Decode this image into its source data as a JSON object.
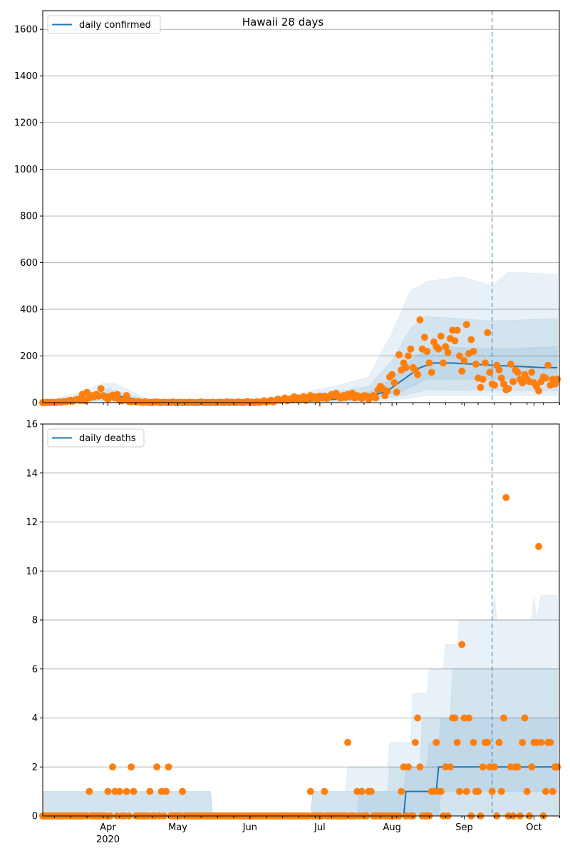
{
  "colors": {
    "model": "#1f77b4",
    "observed": "#ff7f0e",
    "grid": "#b0b0b0"
  },
  "chart_data": [
    {
      "type": "line",
      "title": "Hawaii 28 days",
      "legend": {
        "label": "daily confirmed",
        "placement": "top-left"
      },
      "start_date": "2020-03-04",
      "num_days": 222,
      "forecast_start_day": 193,
      "ylim": [
        0,
        1680
      ],
      "yticks": [
        0,
        200,
        400,
        600,
        800,
        1000,
        1200,
        1400,
        1600
      ],
      "grid": true,
      "observed": [
        0,
        0,
        1,
        0,
        2,
        0,
        1,
        3,
        2,
        5,
        4,
        8,
        10,
        6,
        12,
        15,
        9,
        35,
        8,
        44,
        20,
        30,
        25,
        35,
        28,
        60,
        30,
        22,
        15,
        25,
        32,
        20,
        35,
        10,
        8,
        12,
        30,
        5,
        4,
        6,
        3,
        5,
        2,
        1,
        4,
        2,
        0,
        1,
        2,
        3,
        1,
        0,
        2,
        1,
        0,
        1,
        3,
        0,
        1,
        2,
        0,
        1,
        0,
        2,
        1,
        0,
        0,
        1,
        3,
        1,
        0,
        1,
        0,
        2,
        0,
        1,
        2,
        1,
        0,
        4,
        0,
        2,
        1,
        0,
        3,
        1,
        0,
        2,
        5,
        1,
        2,
        0,
        4,
        1,
        3,
        8,
        2,
        5,
        10,
        3,
        8,
        15,
        10,
        12,
        20,
        8,
        15,
        18,
        25,
        12,
        20,
        15,
        25,
        10,
        22,
        30,
        18,
        25,
        15,
        28,
        20,
        28,
        18,
        25,
        35,
        30,
        40,
        25,
        20,
        30,
        22,
        35,
        25,
        40,
        20,
        30,
        25,
        18,
        30,
        28,
        15,
        25,
        30,
        20,
        55,
        70,
        60,
        30,
        50,
        110,
        120,
        85,
        45,
        205,
        140,
        170,
        150,
        200,
        230,
        150,
        140,
        120,
        355,
        230,
        280,
        220,
        170,
        130,
        260,
        240,
        230,
        285,
        170,
        240,
        215,
        275,
        310,
        265,
        310,
        200,
        135,
        180,
        335,
        210,
        270,
        220,
        165,
        105,
        65,
        100,
        170,
        300,
        130,
        80,
        75,
        160,
        140,
        105,
        80,
        55,
        60,
        165,
        90,
        140,
        130,
        100,
        85,
        120,
        100,
        90,
        130,
        85,
        70,
        50,
        90,
        110,
        105,
        160,
        75,
        100,
        80,
        100
      ],
      "median": [
        [
          0,
          2
        ],
        [
          15,
          15
        ],
        [
          28,
          35
        ],
        [
          40,
          15
        ],
        [
          50,
          3
        ],
        [
          110,
          3
        ],
        [
          125,
          15
        ],
        [
          140,
          25
        ],
        [
          148,
          50
        ],
        [
          155,
          100
        ],
        [
          162,
          150
        ],
        [
          168,
          170
        ],
        [
          175,
          170
        ],
        [
          185,
          165
        ],
        [
          193,
          160
        ],
        [
          205,
          155
        ],
        [
          215,
          150
        ],
        [
          221,
          150
        ]
      ],
      "bands": [
        {
          "lo": [
            [
              0,
              0
            ],
            [
              120,
              0
            ],
            [
              150,
              10
            ],
            [
              165,
              30
            ],
            [
              221,
              30
            ]
          ],
          "hi": [
            [
              0,
              5
            ],
            [
              15,
              40
            ],
            [
              25,
              80
            ],
            [
              30,
              85
            ],
            [
              38,
              50
            ],
            [
              45,
              15
            ],
            [
              55,
              8
            ],
            [
              100,
              10
            ],
            [
              110,
              40
            ],
            [
              125,
              70
            ],
            [
              140,
              110
            ],
            [
              150,
              300
            ],
            [
              158,
              480
            ],
            [
              165,
              520
            ],
            [
              180,
              540
            ],
            [
              193,
              500
            ],
            [
              200,
              560
            ],
            [
              221,
              550
            ]
          ]
        },
        {
          "lo": [
            [
              0,
              0
            ],
            [
              28,
              8
            ],
            [
              40,
              0
            ],
            [
              110,
              2
            ],
            [
              140,
              8
            ],
            [
              155,
              30
            ],
            [
              165,
              55
            ],
            [
              221,
              50
            ]
          ],
          "hi": [
            [
              0,
              3
            ],
            [
              15,
              25
            ],
            [
              28,
              60
            ],
            [
              40,
              25
            ],
            [
              50,
              5
            ],
            [
              100,
              8
            ],
            [
              115,
              30
            ],
            [
              140,
              70
            ],
            [
              150,
              180
            ],
            [
              158,
              320
            ],
            [
              165,
              370
            ],
            [
              193,
              350
            ],
            [
              221,
              360
            ]
          ]
        },
        {
          "lo": [
            [
              0,
              0
            ],
            [
              28,
              20
            ],
            [
              45,
              0
            ],
            [
              110,
              5
            ],
            [
              140,
              15
            ],
            [
              155,
              50
            ],
            [
              165,
              100
            ],
            [
              193,
              100
            ],
            [
              221,
              100
            ]
          ],
          "hi": [
            [
              0,
              2
            ],
            [
              28,
              40
            ],
            [
              45,
              3
            ],
            [
              100,
              5
            ],
            [
              120,
              20
            ],
            [
              140,
              45
            ],
            [
              150,
              100
            ],
            [
              160,
              200
            ],
            [
              170,
              240
            ],
            [
              193,
              230
            ],
            [
              221,
              240
            ]
          ]
        }
      ]
    },
    {
      "type": "line",
      "legend": {
        "label": "daily deaths",
        "placement": "top-left"
      },
      "start_date": "2020-03-04",
      "num_days": 222,
      "forecast_start_day": 193,
      "ylim": [
        0,
        16
      ],
      "yticks": [
        0,
        2,
        4,
        6,
        8,
        10,
        12,
        14,
        16
      ],
      "grid": true,
      "xticks": [
        {
          "day": 28,
          "label": "Apr",
          "sub": "2020"
        },
        {
          "day": 58,
          "label": "May"
        },
        {
          "day": 89,
          "label": "Jun"
        },
        {
          "day": 119,
          "label": "Jul"
        },
        {
          "day": 150,
          "label": "Aug"
        },
        {
          "day": 181,
          "label": "Sep"
        },
        {
          "day": 211,
          "label": "Oct"
        }
      ],
      "observed_default": 0,
      "observed_nonzero": [
        [
          20,
          1
        ],
        [
          28,
          1
        ],
        [
          30,
          2
        ],
        [
          31,
          1
        ],
        [
          33,
          1
        ],
        [
          36,
          1
        ],
        [
          38,
          2
        ],
        [
          39,
          1
        ],
        [
          46,
          1
        ],
        [
          49,
          2
        ],
        [
          51,
          1
        ],
        [
          53,
          1
        ],
        [
          54,
          2
        ],
        [
          60,
          1
        ],
        [
          115,
          1
        ],
        [
          121,
          1
        ],
        [
          131,
          3
        ],
        [
          135,
          1
        ],
        [
          137,
          1
        ],
        [
          140,
          1
        ],
        [
          141,
          1
        ],
        [
          154,
          1
        ],
        [
          155,
          2
        ],
        [
          157,
          2
        ],
        [
          160,
          3
        ],
        [
          161,
          4
        ],
        [
          162,
          2
        ],
        [
          167,
          1
        ],
        [
          168,
          1
        ],
        [
          169,
          3
        ],
        [
          170,
          1
        ],
        [
          171,
          1
        ],
        [
          173,
          2
        ],
        [
          175,
          2
        ],
        [
          176,
          4
        ],
        [
          177,
          4
        ],
        [
          178,
          3
        ],
        [
          179,
          1
        ],
        [
          180,
          7
        ],
        [
          181,
          4
        ],
        [
          182,
          1
        ],
        [
          183,
          4
        ],
        [
          185,
          3
        ],
        [
          186,
          1
        ],
        [
          187,
          1
        ],
        [
          189,
          2
        ],
        [
          190,
          3
        ],
        [
          191,
          3
        ],
        [
          192,
          2
        ],
        [
          193,
          1
        ],
        [
          194,
          2
        ],
        [
          196,
          3
        ],
        [
          197,
          1
        ],
        [
          198,
          4
        ],
        [
          199,
          13
        ],
        [
          201,
          2
        ],
        [
          203,
          2
        ],
        [
          204,
          2
        ],
        [
          206,
          3
        ],
        [
          207,
          4
        ],
        [
          208,
          1
        ],
        [
          210,
          2
        ],
        [
          211,
          3
        ],
        [
          212,
          3
        ],
        [
          213,
          11
        ],
        [
          214,
          3
        ],
        [
          216,
          1
        ],
        [
          217,
          3
        ],
        [
          218,
          3
        ],
        [
          219,
          1
        ],
        [
          220,
          2
        ],
        [
          221,
          2
        ]
      ],
      "median": [
        [
          0,
          0
        ],
        [
          155,
          0
        ],
        [
          156,
          1
        ],
        [
          169,
          1
        ],
        [
          170,
          2
        ],
        [
          221,
          2
        ]
      ],
      "bands": [
        {
          "lo": [
            [
              0,
              0
            ],
            [
              221,
              0
            ]
          ],
          "hi": [
            [
              0,
              1
            ],
            [
              72,
              1
            ],
            [
              73,
              0
            ],
            [
              115,
              0
            ],
            [
              116,
              1
            ],
            [
              130,
              1
            ],
            [
              131,
              2
            ],
            [
              148,
              2
            ],
            [
              149,
              3
            ],
            [
              158,
              3
            ],
            [
              159,
              5
            ],
            [
              165,
              5
            ],
            [
              166,
              6
            ],
            [
              172,
              6
            ],
            [
              173,
              7
            ],
            [
              178,
              7
            ],
            [
              179,
              8
            ],
            [
              193,
              8
            ],
            [
              194,
              9
            ],
            [
              195,
              8
            ],
            [
              210,
              8
            ],
            [
              211,
              9
            ],
            [
              212,
              8
            ],
            [
              214,
              9
            ],
            [
              221,
              9
            ]
          ]
        },
        {
          "lo": [
            [
              0,
              0
            ],
            [
              221,
              0
            ]
          ],
          "hi": [
            [
              0,
              1
            ],
            [
              72,
              1
            ],
            [
              73,
              0
            ],
            [
              115,
              0
            ],
            [
              116,
              1
            ],
            [
              148,
              1
            ],
            [
              149,
              2
            ],
            [
              162,
              2
            ],
            [
              163,
              4
            ],
            [
              175,
              4
            ],
            [
              176,
              6
            ],
            [
              221,
              6
            ]
          ]
        },
        {
          "lo": [
            [
              0,
              0
            ],
            [
              170,
              0
            ],
            [
              171,
              1
            ],
            [
              221,
              1
            ]
          ],
          "hi": [
            [
              0,
              0
            ],
            [
              135,
              0
            ],
            [
              136,
              1
            ],
            [
              155,
              1
            ],
            [
              156,
              2
            ],
            [
              165,
              2
            ],
            [
              166,
              3
            ],
            [
              170,
              3
            ],
            [
              171,
              4
            ],
            [
              221,
              4
            ]
          ]
        }
      ]
    }
  ]
}
